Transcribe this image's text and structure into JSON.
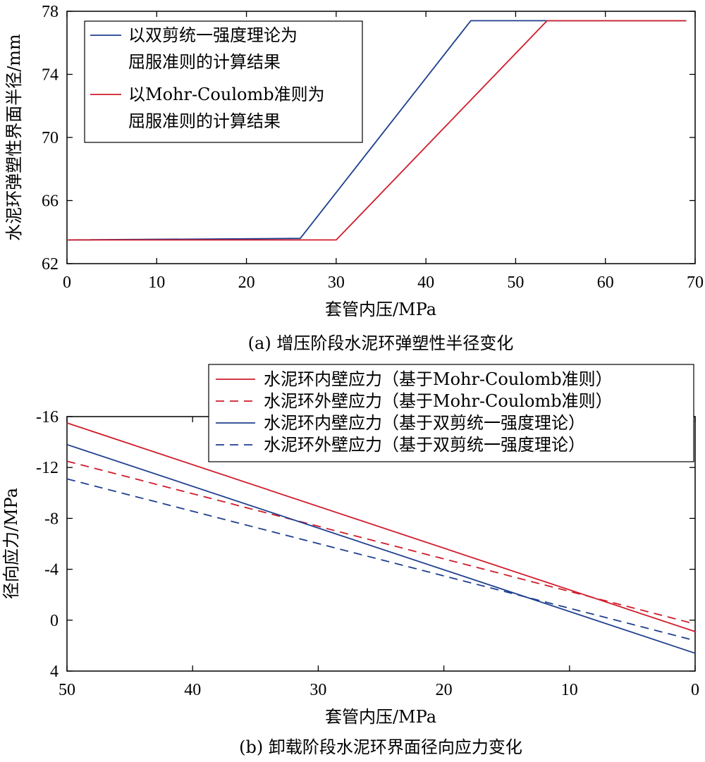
{
  "colors": {
    "blue": "#1f3f8f",
    "red": "#d01c2a",
    "axis": "#000000"
  },
  "chart_data": [
    {
      "type": "line",
      "xlabel": "套管内压/MPa",
      "ylabel": "水泥环弹塑性界面半径/mm",
      "caption": "(a) 增压阶段水泥环弹塑性半径变化",
      "xlim": [
        0,
        70
      ],
      "ylim": [
        62,
        78
      ],
      "xticks": [
        0,
        10,
        20,
        30,
        40,
        50,
        60,
        70
      ],
      "yticks": [
        62,
        66,
        70,
        74,
        78
      ],
      "legend_position": "top-left",
      "series": [
        {
          "name_lines": [
            "以双剪统一强度理论为",
            "屈服准则的计算结果"
          ],
          "color": "blue",
          "dash": "solid",
          "x": [
            0,
            26,
            45,
            69
          ],
          "y": [
            63.5,
            63.6,
            77.4,
            77.4
          ]
        },
        {
          "name_lines": [
            "以Mohr-Coulomb准则为",
            "屈服准则的计算结果"
          ],
          "color": "red",
          "dash": "solid",
          "x": [
            0,
            30,
            53.5,
            69
          ],
          "y": [
            63.5,
            63.5,
            77.4,
            77.4
          ]
        }
      ]
    },
    {
      "type": "line",
      "xlabel": "套管内压/MPa",
      "ylabel": "径向应力/MPa",
      "caption": "(b) 卸载阶段水泥环界面径向应力变化",
      "xlim": [
        50,
        0
      ],
      "ylim": [
        4,
        -16
      ],
      "xticks": [
        50,
        40,
        30,
        20,
        10,
        0
      ],
      "yticks": [
        4,
        0,
        -4,
        -8,
        -12,
        -16
      ],
      "ytick_labels": [
        "4",
        "0",
        "-4",
        "-8",
        "-12",
        "-16"
      ],
      "legend_position": "top-right",
      "series": [
        {
          "name": "水泥环内壁应力（基于Mohr-Coulomb准则）",
          "color": "red",
          "dash": "solid",
          "x": [
            50,
            0
          ],
          "y": [
            -15.5,
            0.9
          ]
        },
        {
          "name": "水泥环外壁应力（基于Mohr-Coulomb准则）",
          "color": "red",
          "dash": "dashed",
          "x": [
            50,
            0
          ],
          "y": [
            -12.5,
            0.3
          ]
        },
        {
          "name": "水泥环内壁应力（基于双剪统一强度理论）",
          "color": "blue",
          "dash": "solid",
          "x": [
            50,
            0
          ],
          "y": [
            -13.8,
            2.6
          ]
        },
        {
          "name": "水泥环外壁应力（基于双剪统一强度理论）",
          "color": "blue",
          "dash": "dashed",
          "x": [
            50,
            0
          ],
          "y": [
            -11.1,
            1.6
          ]
        }
      ]
    }
  ]
}
